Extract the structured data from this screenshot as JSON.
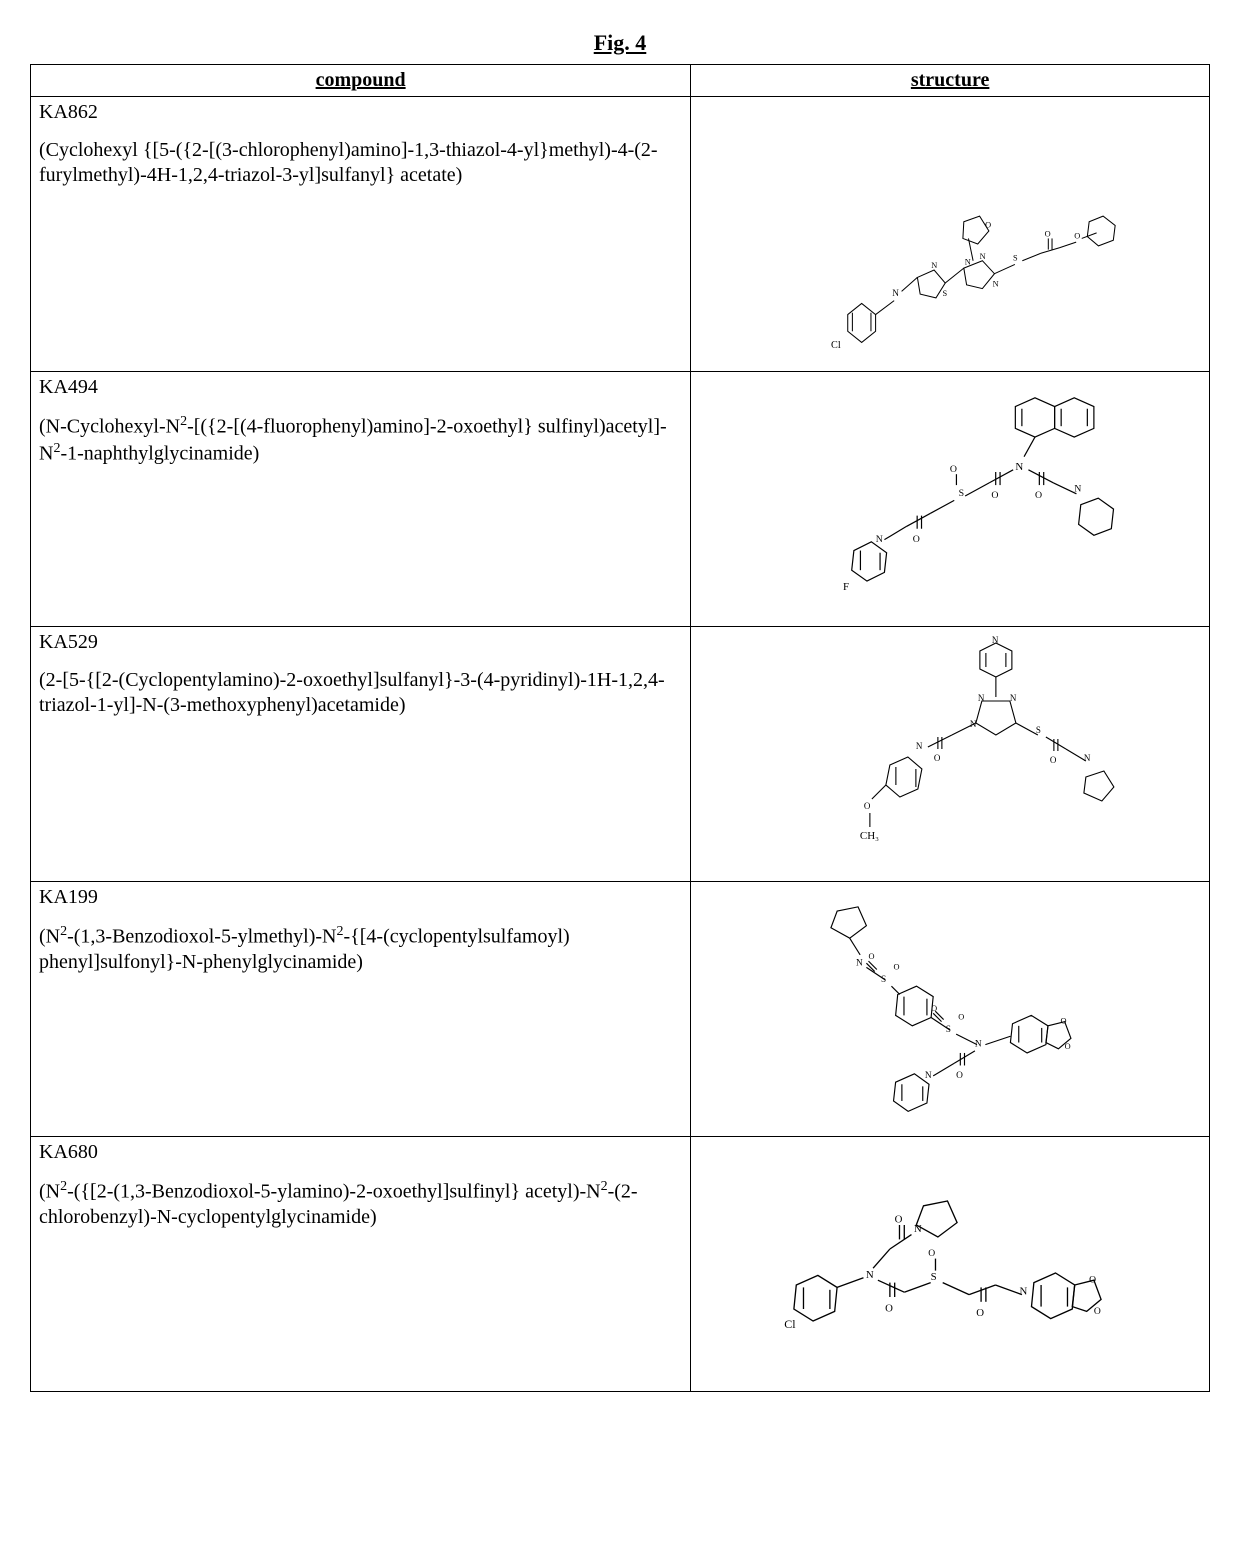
{
  "figure_label": "Fig. 4",
  "columns": [
    "compound",
    "structure"
  ],
  "rows": [
    {
      "id": "KA862",
      "name_html": "(Cyclohexyl {[5-({2-[(3-chlorophenyl)amino]-1,3-thiazol-4-yl}methyl)-4-(2-furylmethyl)-4H-1,2,4-triazol-3-yl]sulfanyl} acetate)",
      "structure_label": "chemical-structure-KA862"
    },
    {
      "id": "KA494",
      "name_html": "(N-Cyclohexyl-N<sup>2</sup>-[({2-[(4-fluorophenyl)amino]-2-oxoethyl} sulfinyl)acetyl]-N<sup>2</sup>-1-naphthylglycinamide)",
      "structure_label": "chemical-structure-KA494"
    },
    {
      "id": "KA529",
      "name_html": "(2-[5-{[2-(Cyclopentylamino)-2-oxoethyl]sulfanyl}-3-(4-pyridinyl)-1H-1,2,4-triazol-1-yl]-N-(3-methoxyphenyl)acetamide)",
      "structure_label": "chemical-structure-KA529"
    },
    {
      "id": "KA199",
      "name_html": "(N<sup>2</sup>-(1,3-Benzodioxol-5-ylmethyl)-N<sup>2</sup>-{[4-(cyclopentylsulfamoyl) phenyl]sulfonyl}-N-phenylglycinamide)",
      "structure_label": "chemical-structure-KA199"
    },
    {
      "id": "KA680",
      "name_html": "(N<sup>2</sup>-({[2-(1,3-Benzodioxol-5-ylamino)-2-oxoethyl]sulfinyl} acetyl)-N<sup>2</sup>-(2-chlorobenzyl)-N-cyclopentylglycinamide)",
      "structure_label": "chemical-structure-KA680"
    }
  ],
  "structure_stroke": "#000000",
  "structure_stroke_width": 1.1,
  "label_font": "11px sans-serif",
  "ch3_label": "CH₃",
  "cl_label": "Cl",
  "f_label": "F"
}
